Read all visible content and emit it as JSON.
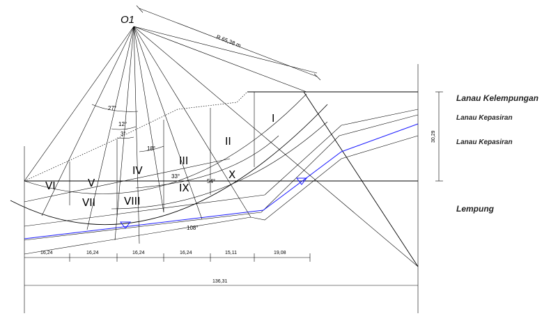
{
  "center_label": "O1",
  "radius_label": "R 65,38 m",
  "slices": [
    "I",
    "II",
    "III",
    "IV",
    "V",
    "VI",
    "VII",
    "VIII",
    "IX",
    "X"
  ],
  "angles": [
    "27°",
    "12°",
    "3°",
    "18°",
    "33°",
    "54°",
    "108°"
  ],
  "layers": [
    "Lanau Kelempungan",
    "Lanau Kepasiran",
    "Lanau Kepasiran",
    "Lempung"
  ],
  "height_dim": "30,29",
  "bottom_dims": [
    "16,24",
    "16,24",
    "16,24",
    "16,24",
    "15,11",
    "19,08"
  ],
  "total_dim": "136,31",
  "colors": {
    "line": "#000000",
    "water": "#1a1aff"
  }
}
